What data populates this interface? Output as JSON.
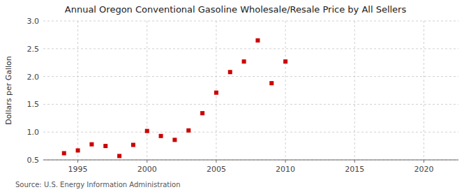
{
  "chart_data": {
    "type": "scatter",
    "title": "Annual Oregon Conventional Gasoline Wholesale/Resale Price by All Sellers",
    "y_label": "Dollars per Gallon",
    "annotations": [
      "Source: U.S. Energy Information Administration"
    ],
    "x": [
      1994,
      1995,
      1996,
      1997,
      1998,
      1999,
      2000,
      2001,
      2002,
      2003,
      2004,
      2005,
      2006,
      2007,
      2008,
      2009,
      2010
    ],
    "values": [
      0.62,
      0.67,
      0.78,
      0.75,
      0.57,
      0.77,
      1.02,
      0.93,
      0.86,
      1.03,
      1.34,
      1.71,
      2.08,
      2.27,
      2.65,
      1.88,
      2.27
    ],
    "color": "#cc0000",
    "marker": "square",
    "xlim": [
      1992.5,
      2022.5
    ],
    "ylim": [
      0.5,
      3.0
    ],
    "xticks": [
      1995,
      2000,
      2005,
      2010,
      2015,
      2020
    ],
    "yticks": [
      0.5,
      {
        "value": 1.0,
        "label": "1.0"
      },
      1.5,
      {
        "value": 2.0,
        "label": "2.0"
      },
      2.5,
      {
        "value": 3.0,
        "label": "3.0"
      }
    ],
    "grid": true
  }
}
